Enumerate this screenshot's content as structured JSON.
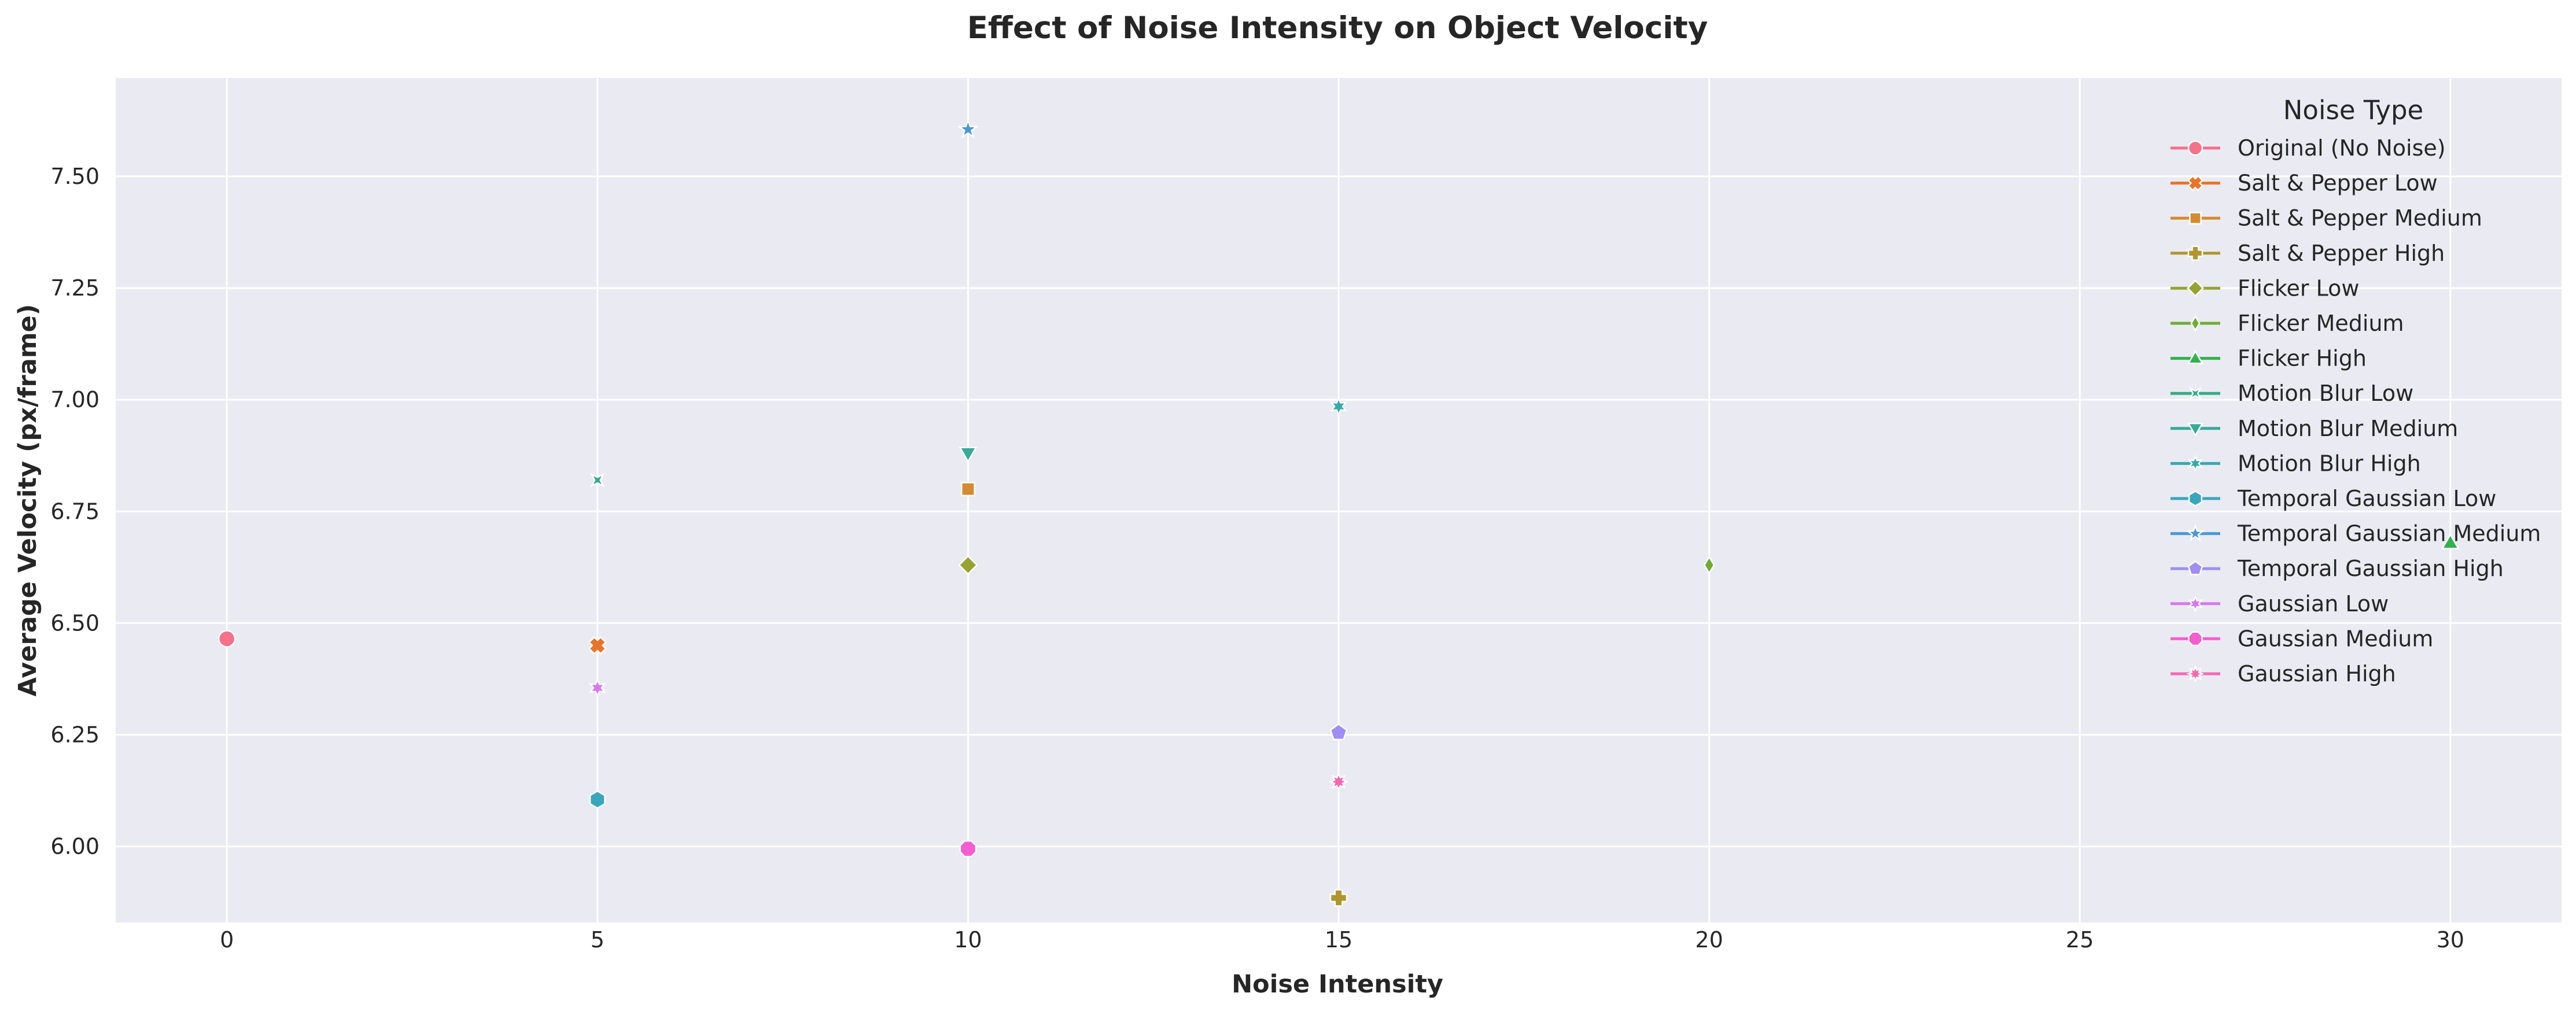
{
  "chart_data": {
    "type": "scatter",
    "title": "Effect of Noise Intensity on Object Velocity",
    "xlabel": "Noise Intensity",
    "ylabel": "Average Velocity (px/frame)",
    "xlim": [
      -1.5,
      31.5
    ],
    "ylim": [
      5.83,
      7.72
    ],
    "xticks": [
      0,
      5,
      10,
      15,
      20,
      25,
      30
    ],
    "xtick_labels": [
      "0",
      "5",
      "10",
      "15",
      "20",
      "25",
      "30"
    ],
    "yticks": [
      6.0,
      6.25,
      6.5,
      6.75,
      7.0,
      7.25,
      7.5
    ],
    "ytick_labels": [
      "6.00",
      "6.25",
      "6.50",
      "6.75",
      "7.00",
      "7.25",
      "7.50"
    ],
    "grid": true,
    "background": "#eaeaf2",
    "legend": {
      "title": "Noise Type",
      "placement": "top-right"
    },
    "series": [
      {
        "name": "Original (No Noise)",
        "color": "#f77189",
        "marker": "circle",
        "x": [
          0
        ],
        "y": [
          6.465
        ]
      },
      {
        "name": "Salt & Pepper Low",
        "color": "#e8742a",
        "marker": "x",
        "x": [
          5
        ],
        "y": [
          6.45
        ]
      },
      {
        "name": "Salt & Pepper Medium",
        "color": "#d58b31",
        "marker": "square",
        "x": [
          10
        ],
        "y": [
          6.8
        ]
      },
      {
        "name": "Salt & Pepper High",
        "color": "#b0962f",
        "marker": "plus",
        "x": [
          15
        ],
        "y": [
          5.885
        ]
      },
      {
        "name": "Flicker Low",
        "color": "#97a431",
        "marker": "diamond",
        "x": [
          10
        ],
        "y": [
          6.63
        ]
      },
      {
        "name": "Flicker Medium",
        "color": "#6ead34",
        "marker": "thin-diamond",
        "x": [
          20
        ],
        "y": [
          6.63
        ]
      },
      {
        "name": "Flicker High",
        "color": "#33b04f",
        "marker": "triangle-up",
        "x": [
          30
        ],
        "y": [
          6.68
        ]
      },
      {
        "name": "Motion Blur Low",
        "color": "#35ab84",
        "marker": "tri-x",
        "x": [
          5
        ],
        "y": [
          6.82
        ]
      },
      {
        "name": "Motion Blur Medium",
        "color": "#37aa9b",
        "marker": "triangle-down",
        "x": [
          10
        ],
        "y": [
          6.88
        ]
      },
      {
        "name": "Motion Blur High",
        "color": "#38a9ac",
        "marker": "star6",
        "x": [
          15
        ],
        "y": [
          6.985
        ]
      },
      {
        "name": "Temporal Gaussian Low",
        "color": "#39a6bc",
        "marker": "hexagon",
        "x": [
          5
        ],
        "y": [
          6.105
        ]
      },
      {
        "name": "Temporal Gaussian Medium",
        "color": "#4a98d4",
        "marker": "star5",
        "x": [
          10
        ],
        "y": [
          7.605
        ]
      },
      {
        "name": "Temporal Gaussian High",
        "color": "#9f8ef4",
        "marker": "pentagon",
        "x": [
          15
        ],
        "y": [
          6.255
        ]
      },
      {
        "name": "Gaussian Low",
        "color": "#d57aec",
        "marker": "star6",
        "x": [
          5
        ],
        "y": [
          6.355
        ]
      },
      {
        "name": "Gaussian Medium",
        "color": "#f45fd0",
        "marker": "octagon",
        "x": [
          10
        ],
        "y": [
          5.995
        ]
      },
      {
        "name": "Gaussian High",
        "color": "#f668b2",
        "marker": "star8",
        "x": [
          15
        ],
        "y": [
          6.145
        ]
      }
    ]
  }
}
